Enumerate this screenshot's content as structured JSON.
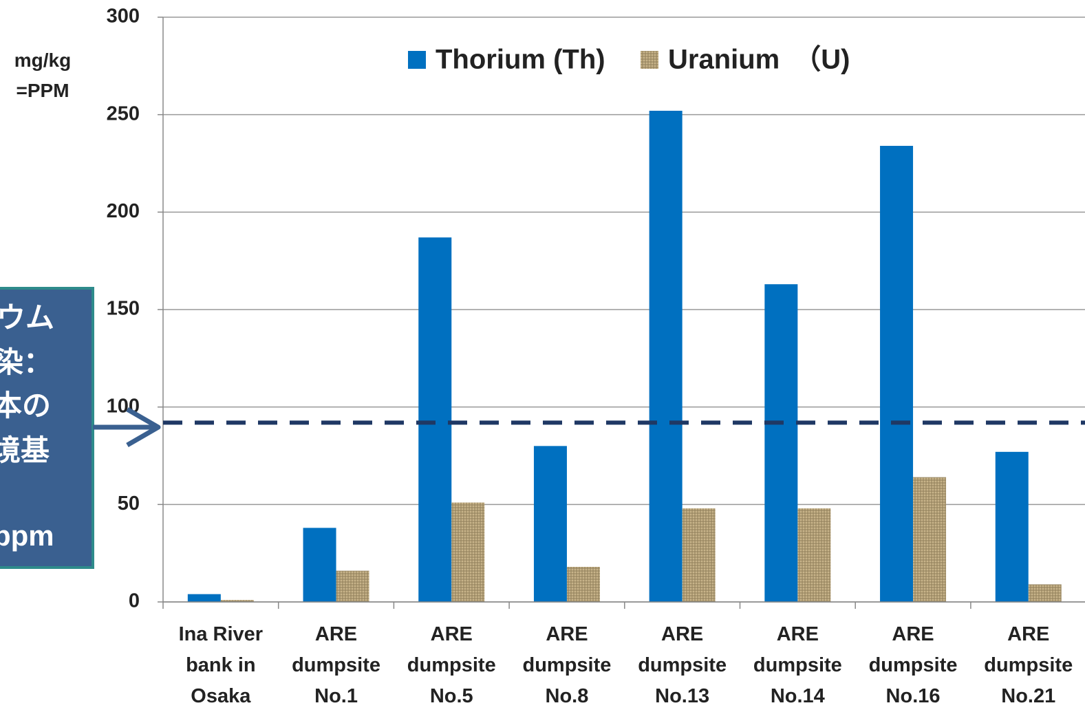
{
  "chart_data": {
    "type": "bar",
    "y_label_lines": [
      "mg/kg",
      "=PPM"
    ],
    "categories": [
      "Ina River bank in Osaka",
      "ARE dumpsite No.1",
      "ARE dumpsite No.5",
      "ARE dumpsite No.8",
      "ARE dumpsite No.13",
      "ARE dumpsite No.14",
      "ARE dumpsite No.16",
      "ARE dumpsite No.21"
    ],
    "series": [
      {
        "name": "Thorium (Th)",
        "color": "#0070c0",
        "values": [
          4,
          38,
          187,
          80,
          252,
          163,
          234,
          77
        ]
      },
      {
        "name": "Uranium　（U)",
        "color": "#c8b48a",
        "values": [
          1,
          16,
          51,
          18,
          48,
          48,
          64,
          9
        ]
      }
    ],
    "reference_line": 92,
    "annotation_lines": [
      "ウム",
      "染：",
      "本の",
      "境基",
      "ppm"
    ],
    "ylim": [
      0,
      300
    ],
    "yticks": [
      0,
      50,
      100,
      150,
      200,
      250,
      300
    ],
    "grid": true,
    "legend": "top"
  }
}
